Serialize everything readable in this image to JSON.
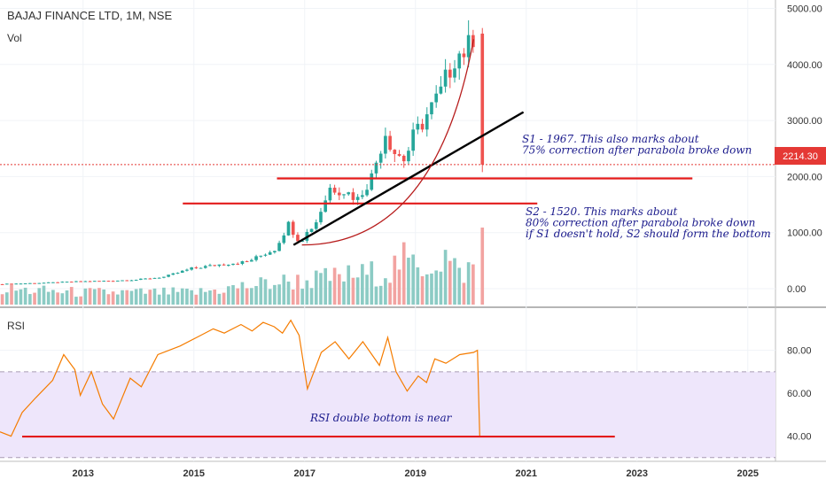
{
  "header": {
    "title": "BAJAJ FINANCE LTD, 1M, NSE",
    "volume_label": "Vol"
  },
  "rsi_panel": {
    "label": "RSI"
  },
  "price_badge": "2214.30",
  "colors": {
    "up": "#26a69a",
    "down": "#ef5350",
    "vol_up": "#8ccbc4",
    "vol_down": "#f2a3a1",
    "annotation_line": "#e31b1b",
    "trendline": "#000000",
    "parabola": "#b71c1c",
    "rsi_line": "#f57c00",
    "rsi_band": "#eee6fb",
    "note_text": "#1a1a8c"
  },
  "chart_data": [
    {
      "type": "candlestick",
      "title": "BAJAJ FINANCE LTD, 1M, NSE",
      "y_ticks": [
        "5000.00",
        "4000.00",
        "3000.00",
        "2000.00",
        "1000.00",
        "0.00"
      ],
      "y_tick_values": [
        5000,
        4000,
        3000,
        2000,
        1000,
        0
      ],
      "ylim": [
        -300,
        5150
      ],
      "x_ticks": [
        "2013",
        "2015",
        "2017",
        "2019",
        "2021",
        "2023",
        "2025"
      ],
      "x_tick_values": [
        2013,
        2015,
        2017,
        2019,
        2021,
        2023,
        2025
      ],
      "xlim": [
        2011.5,
        2025.5
      ],
      "last_price": 2214.3,
      "price_path": {
        "dates": [
          2011.5,
          2012.0,
          2012.5,
          2013.0,
          2013.5,
          2014.0,
          2014.5,
          2015.0,
          2015.5,
          2016.0,
          2016.5,
          2016.75,
          2016.95,
          2017.25,
          2017.5,
          2017.75,
          2018.0,
          2018.25,
          2018.5,
          2018.65,
          2018.85,
          2019.0,
          2019.25,
          2019.5,
          2019.75,
          2020.0,
          2020.083,
          2020.16
        ],
        "values": [
          80,
          95,
          110,
          130,
          140,
          160,
          210,
          360,
          430,
          480,
          700,
          1150,
          840,
          1200,
          1800,
          1750,
          1600,
          2000,
          2800,
          2450,
          2300,
          2700,
          3100,
          3500,
          4150,
          4300,
          4550,
          2214
        ]
      },
      "volume_path": {
        "dates": [
          2011.5,
          2013.0,
          2015.0,
          2016.5,
          2017.0,
          2017.5,
          2018.0,
          2018.5,
          2018.7,
          2019.0,
          2019.5,
          2019.75,
          2020.0,
          2020.16
        ],
        "values": [
          0.1,
          0.08,
          0.08,
          0.15,
          0.16,
          0.18,
          0.2,
          0.22,
          0.3,
          0.24,
          0.32,
          0.2,
          0.25,
          0.55
        ]
      },
      "annotations": [
        {
          "type": "horizontal",
          "level": 1967,
          "from": 2016.5,
          "to": 2024.0,
          "label": "S1 - 1967"
        },
        {
          "type": "horizontal",
          "level": 1520,
          "from": 2014.8,
          "to": 2021.2,
          "label": "S2 - 1520"
        },
        {
          "type": "trendline",
          "from": [
            2016.8,
            780
          ],
          "to": [
            2020.95,
            3150
          ]
        },
        {
          "type": "parabola",
          "from": [
            2016.95,
            780
          ],
          "to": [
            2020.05,
            4450
          ]
        }
      ],
      "notes": [
        {
          "lines": [
            "S1 - 1967. This also marks about",
            "75% correction after parabola broke down"
          ]
        },
        {
          "lines": [
            "S2 - 1520. This marks about",
            "80% correction after parabola broke down",
            "if S1 doesn't hold, S2 should form the bottom"
          ]
        }
      ]
    },
    {
      "type": "line",
      "title": "RSI",
      "y_ticks": [
        "80.00",
        "60.00",
        "40.00"
      ],
      "y_tick_values": [
        80,
        60,
        40
      ],
      "ylim": [
        29.5,
        98
      ],
      "band": [
        30,
        70
      ],
      "x": [
        2011.5,
        2011.7,
        2011.9,
        2012.15,
        2012.45,
        2012.65,
        2012.85,
        2012.95,
        2013.15,
        2013.35,
        2013.55,
        2013.85,
        2014.05,
        2014.35,
        2014.75,
        2015.05,
        2015.35,
        2015.55,
        2015.85,
        2016.05,
        2016.25,
        2016.45,
        2016.6,
        2016.75,
        2016.9,
        2017.05,
        2017.3,
        2017.55,
        2017.8,
        2018.05,
        2018.35,
        2018.5,
        2018.65,
        2018.85,
        2019.05,
        2019.2,
        2019.35,
        2019.55,
        2019.8,
        2020.05,
        2020.12,
        2020.16
      ],
      "values": [
        42,
        40,
        51,
        58,
        66,
        78,
        71,
        59,
        70,
        55,
        48,
        67,
        63,
        78,
        82,
        86,
        90,
        88,
        92,
        89,
        93,
        91,
        88,
        94,
        87,
        62,
        79,
        84,
        76,
        84,
        73,
        86,
        70,
        61,
        68,
        65,
        76,
        74,
        78,
        79,
        80,
        40
      ]
    }
  ],
  "rsi_note": "RSI double bottom is near"
}
